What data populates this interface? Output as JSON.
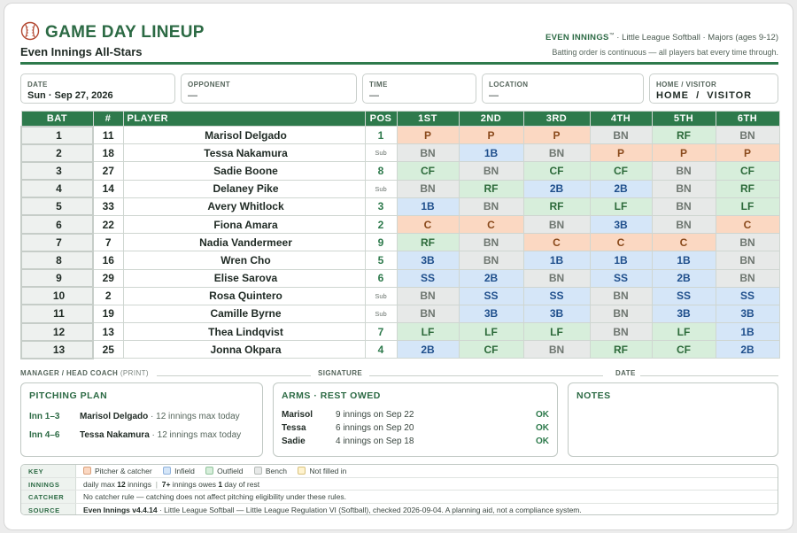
{
  "header": {
    "title": "GAME DAY LINEUP",
    "team": "Even Innings All-Stars",
    "brand": "EVEN INNINGS",
    "trademark": "™",
    "league_info": " · Little League Softball · Majors (ages 9-12)",
    "note": "Batting order is continuous — all players bat every time through."
  },
  "fields": {
    "date": {
      "label": "DATE",
      "value": "Sun · Sep 27, 2026"
    },
    "opponent": {
      "label": "OPPONENT",
      "value": "—"
    },
    "time": {
      "label": "TIME",
      "value": "—"
    },
    "location": {
      "label": "LOCATION",
      "value": "—"
    },
    "home_visitor": {
      "label": "HOME / VISITOR",
      "value": "HOME  /  VISITOR"
    }
  },
  "table": {
    "headers": [
      "BAT",
      "#",
      "PLAYER",
      "POS",
      "1ST",
      "2ND",
      "3RD",
      "4TH",
      "5TH",
      "6TH"
    ],
    "rows": [
      {
        "bat": "1",
        "num": "11",
        "name": "Marisol Delgado",
        "pos": "1",
        "inn": [
          "P",
          "P",
          "P",
          "BN",
          "RF",
          "BN"
        ]
      },
      {
        "bat": "2",
        "num": "18",
        "name": "Tessa Nakamura",
        "pos": "Sub",
        "inn": [
          "BN",
          "1B",
          "BN",
          "P",
          "P",
          "P"
        ]
      },
      {
        "bat": "3",
        "num": "27",
        "name": "Sadie Boone",
        "pos": "8",
        "inn": [
          "CF",
          "BN",
          "CF",
          "CF",
          "BN",
          "CF"
        ]
      },
      {
        "bat": "4",
        "num": "14",
        "name": "Delaney Pike",
        "pos": "Sub",
        "inn": [
          "BN",
          "RF",
          "2B",
          "2B",
          "BN",
          "RF"
        ]
      },
      {
        "bat": "5",
        "num": "33",
        "name": "Avery Whitlock",
        "pos": "3",
        "inn": [
          "1B",
          "BN",
          "RF",
          "LF",
          "BN",
          "LF"
        ]
      },
      {
        "bat": "6",
        "num": "22",
        "name": "Fiona Amara",
        "pos": "2",
        "inn": [
          "C",
          "C",
          "BN",
          "3B",
          "BN",
          "C"
        ]
      },
      {
        "bat": "7",
        "num": "7",
        "name": "Nadia Vandermeer",
        "pos": "9",
        "inn": [
          "RF",
          "BN",
          "C",
          "C",
          "C",
          "BN"
        ]
      },
      {
        "bat": "8",
        "num": "16",
        "name": "Wren Cho",
        "pos": "5",
        "inn": [
          "3B",
          "BN",
          "1B",
          "1B",
          "1B",
          "BN"
        ]
      },
      {
        "bat": "9",
        "num": "29",
        "name": "Elise Sarova",
        "pos": "6",
        "inn": [
          "SS",
          "2B",
          "BN",
          "SS",
          "2B",
          "BN"
        ]
      },
      {
        "bat": "10",
        "num": "2",
        "name": "Rosa Quintero",
        "pos": "Sub",
        "inn": [
          "BN",
          "SS",
          "SS",
          "BN",
          "SS",
          "SS"
        ]
      },
      {
        "bat": "11",
        "num": "19",
        "name": "Camille Byrne",
        "pos": "Sub",
        "inn": [
          "BN",
          "3B",
          "3B",
          "BN",
          "3B",
          "3B"
        ]
      },
      {
        "bat": "12",
        "num": "13",
        "name": "Thea Lindqvist",
        "pos": "7",
        "inn": [
          "LF",
          "LF",
          "LF",
          "BN",
          "LF",
          "1B"
        ]
      },
      {
        "bat": "13",
        "num": "25",
        "name": "Jonna Okpara",
        "pos": "4",
        "inn": [
          "2B",
          "CF",
          "BN",
          "RF",
          "CF",
          "2B"
        ]
      }
    ]
  },
  "signatures": {
    "manager": "MANAGER / HEAD COACH",
    "print": "(PRINT)",
    "signature": "SIGNATURE",
    "date": "DATE"
  },
  "pitching": {
    "title": "PITCHING PLAN",
    "rows": [
      {
        "inn": "Inn 1–3",
        "name": "Marisol Delgado",
        "note": " · 12 innings max today"
      },
      {
        "inn": "Inn 4–6",
        "name": "Tessa Nakamura",
        "note": " · 12 innings max today"
      }
    ]
  },
  "arms": {
    "title": "ARMS · REST OWED",
    "rows": [
      {
        "name": "Marisol",
        "rest": "9 innings on Sep 22",
        "status": "OK"
      },
      {
        "name": "Tessa",
        "rest": "6 innings on Sep 20",
        "status": "OK"
      },
      {
        "name": "Sadie",
        "rest": "4 innings on Sep 18",
        "status": "OK"
      }
    ]
  },
  "notes": {
    "title": "NOTES"
  },
  "key": {
    "key_label": "KEY",
    "items": [
      "Pitcher & catcher",
      "Infield",
      "Outfield",
      "Bench",
      "Not filled in"
    ],
    "innings_label": "INNINGS",
    "innings_a": "daily max ",
    "innings_b": "12",
    "innings_c": " innings",
    "innings_sep": "|",
    "innings_d": "7+",
    "innings_e": " innings owes ",
    "innings_f": "1",
    "innings_g": " day of rest",
    "catcher_label": "CATCHER",
    "catcher_text": "No catcher rule — catching does not affect pitching eligibility under these rules.",
    "source_label": "SOURCE",
    "source_bold": "Even Innings v4.4.14",
    "source_text": " · Little League Softball — Little League Regulation VI (Softball), checked 2026-09-04. A planning aid, not a compliance system."
  },
  "colors": {
    "accent": "#2e7a4c",
    "pitcher_catcher": "#fbd8c2",
    "infield": "#d5e6f8",
    "outfield": "#d7eedb",
    "bench": "#e7e9e8",
    "not_filled": "#fff3cf"
  },
  "icons": {
    "logo": "softball-icon"
  }
}
